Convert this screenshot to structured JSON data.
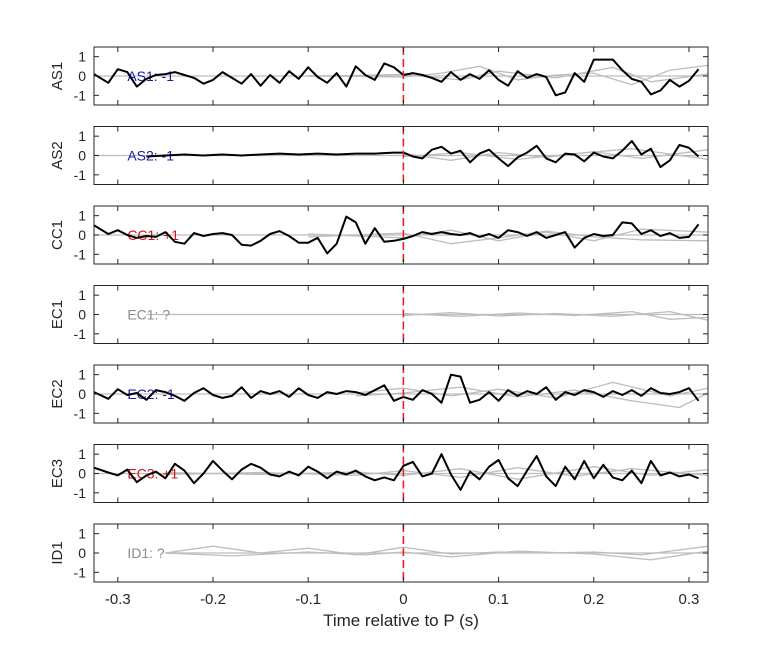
{
  "chart_data": {
    "type": "line",
    "xlabel": "Time relative to P (s)",
    "xlim": [
      -0.325,
      0.32
    ],
    "ylim": [
      -1.5,
      1.5
    ],
    "xticks": [
      -0.3,
      -0.2,
      -0.1,
      0,
      0.1,
      0.2,
      0.3
    ],
    "xtick_labels": [
      "-0.3",
      "-0.2",
      "-0.1",
      "0",
      "0.1",
      "0.2",
      "0.3"
    ],
    "yticks": [
      -1,
      0,
      1
    ],
    "ytick_labels": [
      "-1",
      "0",
      "1"
    ],
    "event_marker": {
      "x": 0,
      "style": "dashed",
      "color": "#e8231f"
    },
    "colors": {
      "negative": "#1c1ca8",
      "positive": "#d01717",
      "unknown": "#8c8c8c",
      "trace": "#000000",
      "background": "#bdbdbd"
    },
    "panels": [
      {
        "ylabel": "AS1",
        "annotation": "AS1: -1",
        "annotation_color": "#1c1ca8",
        "x": [
          -0.325,
          -0.31,
          -0.3,
          -0.29,
          -0.28,
          -0.27,
          -0.26,
          -0.25,
          -0.24,
          -0.23,
          -0.22,
          -0.21,
          -0.2,
          -0.19,
          -0.18,
          -0.17,
          -0.16,
          -0.15,
          -0.14,
          -0.13,
          -0.12,
          -0.11,
          -0.1,
          -0.09,
          -0.08,
          -0.07,
          -0.06,
          -0.05,
          -0.04,
          -0.03,
          -0.02,
          -0.01,
          0,
          0.01,
          0.02,
          0.03,
          0.04,
          0.05,
          0.06,
          0.07,
          0.08,
          0.09,
          0.1,
          0.11,
          0.12,
          0.13,
          0.14,
          0.15,
          0.16,
          0.17,
          0.18,
          0.19,
          0.2,
          0.21,
          0.22,
          0.23,
          0.24,
          0.25,
          0.26,
          0.27,
          0.28,
          0.29,
          0.3,
          0.31
        ],
        "y": [
          0.1,
          -0.35,
          0.35,
          0.2,
          -0.55,
          -0.15,
          0.05,
          0.1,
          0.2,
          0.05,
          -0.1,
          -0.4,
          -0.2,
          0.2,
          -0.1,
          -0.4,
          0.1,
          -0.5,
          0.05,
          -0.35,
          0.25,
          -0.15,
          0.45,
          -0.05,
          -0.35,
          0.15,
          -0.55,
          0.5,
          0.05,
          -0.2,
          0.65,
          0.45,
          0.05,
          0.15,
          0.05,
          -0.1,
          -0.3,
          0.2,
          -0.2,
          0.1,
          -0.15,
          0.3,
          -0.2,
          -0.5,
          0.25,
          -0.1,
          0.1,
          -0.05,
          -1.0,
          -0.85,
          0.15,
          -0.3,
          0.85,
          0.85,
          0.85,
          0.3,
          -0.15,
          -0.3,
          -0.95,
          -0.75,
          -0.2,
          -0.55,
          -0.25,
          0.35
        ],
        "background": [
          {
            "x": [
              -0.325,
              0.32
            ],
            "y": [
              0.0,
              0.0
            ]
          },
          {
            "x": [
              -0.1,
              0.0,
              0.04,
              0.08,
              0.12,
              0.16,
              0.2,
              0.24,
              0.28,
              0.32
            ],
            "y": [
              0.02,
              -0.05,
              0.15,
              0.5,
              -0.2,
              0.05,
              0.15,
              -0.45,
              0.3,
              0.55
            ]
          },
          {
            "x": [
              -0.1,
              0.0,
              0.06,
              0.1,
              0.16,
              0.22,
              0.26,
              0.32
            ],
            "y": [
              -0.02,
              0.08,
              -0.2,
              0.25,
              -0.1,
              0.45,
              -0.3,
              0.1
            ]
          }
        ]
      },
      {
        "ylabel": "AS2",
        "annotation": "AS2: -1",
        "annotation_color": "#1c1ca8",
        "x": [
          -0.27,
          -0.25,
          -0.23,
          -0.21,
          -0.19,
          -0.17,
          -0.15,
          -0.13,
          -0.11,
          -0.09,
          -0.07,
          -0.05,
          -0.03,
          -0.01,
          0,
          0.01,
          0.02,
          0.03,
          0.04,
          0.05,
          0.06,
          0.07,
          0.08,
          0.09,
          0.1,
          0.11,
          0.12,
          0.13,
          0.14,
          0.15,
          0.16,
          0.17,
          0.18,
          0.19,
          0.2,
          0.21,
          0.22,
          0.23,
          0.24,
          0.25,
          0.26,
          0.27,
          0.28,
          0.29,
          0.3,
          0.31
        ],
        "y": [
          -0.05,
          0.0,
          0.05,
          0.0,
          0.05,
          0.0,
          0.05,
          0.1,
          0.05,
          0.1,
          0.05,
          0.1,
          0.1,
          0.15,
          0.15,
          -0.05,
          -0.15,
          0.3,
          0.45,
          0.1,
          0.25,
          -0.35,
          0.1,
          0.3,
          -0.15,
          -0.55,
          -0.1,
          0.15,
          0.5,
          -0.15,
          -0.35,
          0.1,
          0.05,
          -0.3,
          0.15,
          -0.05,
          -0.15,
          0.25,
          0.75,
          0.05,
          0.35,
          -0.6,
          -0.25,
          0.55,
          0.4,
          -0.05
        ],
        "background": [
          {
            "x": [
              -0.325,
              0.32
            ],
            "y": [
              0.0,
              0.0
            ]
          },
          {
            "x": [
              0.0,
              0.05,
              0.1,
              0.15,
              0.2,
              0.25,
              0.32
            ],
            "y": [
              0.1,
              -0.25,
              0.15,
              -0.1,
              0.2,
              -0.15,
              0.3
            ]
          },
          {
            "x": [
              0.0,
              0.06,
              0.12,
              0.18,
              0.24,
              0.32
            ],
            "y": [
              -0.05,
              0.15,
              -0.2,
              0.1,
              0.35,
              -0.2
            ]
          }
        ]
      },
      {
        "ylabel": "CC1",
        "annotation": "CC1: +1",
        "annotation_color": "#d01717",
        "x": [
          -0.325,
          -0.31,
          -0.3,
          -0.29,
          -0.28,
          -0.27,
          -0.26,
          -0.25,
          -0.24,
          -0.23,
          -0.22,
          -0.21,
          -0.2,
          -0.19,
          -0.18,
          -0.17,
          -0.16,
          -0.15,
          -0.14,
          -0.13,
          -0.12,
          -0.11,
          -0.1,
          -0.09,
          -0.08,
          -0.07,
          -0.06,
          -0.05,
          -0.04,
          -0.03,
          -0.02,
          -0.01,
          0,
          0.01,
          0.02,
          0.03,
          0.04,
          0.05,
          0.06,
          0.07,
          0.08,
          0.09,
          0.1,
          0.11,
          0.12,
          0.13,
          0.14,
          0.15,
          0.16,
          0.17,
          0.18,
          0.19,
          0.2,
          0.21,
          0.22,
          0.23,
          0.24,
          0.25,
          0.26,
          0.27,
          0.28,
          0.29,
          0.3,
          0.31
        ],
        "y": [
          0.5,
          0.05,
          0.25,
          0.0,
          -0.15,
          -0.05,
          -0.1,
          0.15,
          -0.35,
          -0.45,
          0.1,
          -0.05,
          0.05,
          0.1,
          0.0,
          -0.5,
          -0.55,
          -0.3,
          0.05,
          0.2,
          -0.05,
          -0.4,
          -0.4,
          -0.15,
          -0.95,
          -0.45,
          0.95,
          0.65,
          -0.45,
          0.35,
          -0.35,
          -0.3,
          -0.2,
          -0.05,
          0.15,
          0.05,
          0.15,
          0.05,
          0.0,
          0.1,
          -0.1,
          0.05,
          -0.15,
          0.25,
          0.15,
          -0.05,
          0.15,
          -0.15,
          0.0,
          0.15,
          -0.65,
          -0.15,
          0.05,
          -0.05,
          0.0,
          0.65,
          0.6,
          0.05,
          0.25,
          -0.05,
          0.1,
          -0.15,
          -0.1,
          0.55
        ],
        "background": [
          {
            "x": [
              -0.325,
              0.32
            ],
            "y": [
              0.0,
              0.0
            ]
          },
          {
            "x": [
              -0.1,
              0.0,
              0.05,
              0.1,
              0.15,
              0.2,
              0.25,
              0.32
            ],
            "y": [
              -0.1,
              0.1,
              -0.45,
              -0.15,
              0.2,
              -0.1,
              -0.25,
              -0.3
            ]
          },
          {
            "x": [
              -0.1,
              0.0,
              0.05,
              0.1,
              0.15,
              0.2,
              0.25,
              0.32
            ],
            "y": [
              0.05,
              -0.15,
              0.25,
              -0.3,
              0.15,
              -0.3,
              0.3,
              0.15
            ]
          }
        ]
      },
      {
        "ylabel": "EC1",
        "annotation": "EC1: ?",
        "annotation_color": "#8c8c8c",
        "x": [],
        "y": [],
        "background": [
          {
            "x": [
              -0.27,
              0.32
            ],
            "y": [
              0.0,
              0.0
            ]
          },
          {
            "x": [
              0.0,
              0.06,
              0.12,
              0.18,
              0.24,
              0.28,
              0.32
            ],
            "y": [
              0.05,
              -0.1,
              0.08,
              -0.05,
              0.15,
              -0.25,
              -0.15
            ]
          },
          {
            "x": [
              0.0,
              0.05,
              0.1,
              0.16,
              0.22,
              0.28,
              0.32
            ],
            "y": [
              -0.05,
              0.1,
              -0.08,
              0.05,
              -0.1,
              0.15,
              -0.3
            ]
          }
        ]
      },
      {
        "ylabel": "EC2",
        "annotation": "EC2: -1",
        "annotation_color": "#1c1ca8",
        "x": [
          -0.325,
          -0.31,
          -0.3,
          -0.29,
          -0.28,
          -0.27,
          -0.26,
          -0.25,
          -0.24,
          -0.23,
          -0.22,
          -0.21,
          -0.2,
          -0.19,
          -0.18,
          -0.17,
          -0.16,
          -0.15,
          -0.14,
          -0.13,
          -0.12,
          -0.11,
          -0.1,
          -0.09,
          -0.08,
          -0.07,
          -0.06,
          -0.05,
          -0.04,
          -0.03,
          -0.02,
          -0.01,
          0,
          0.01,
          0.02,
          0.03,
          0.04,
          0.05,
          0.06,
          0.07,
          0.08,
          0.09,
          0.1,
          0.11,
          0.12,
          0.13,
          0.14,
          0.15,
          0.16,
          0.17,
          0.18,
          0.19,
          0.2,
          0.21,
          0.22,
          0.23,
          0.24,
          0.25,
          0.26,
          0.27,
          0.28,
          0.29,
          0.3,
          0.31
        ],
        "y": [
          0.1,
          -0.25,
          0.25,
          -0.05,
          0.05,
          -0.3,
          0.2,
          0.1,
          -0.1,
          -0.35,
          0.05,
          0.3,
          -0.05,
          -0.2,
          -0.1,
          0.35,
          -0.2,
          0.15,
          0.0,
          0.15,
          -0.15,
          0.3,
          -0.05,
          -0.2,
          0.1,
          0.0,
          0.15,
          0.1,
          -0.05,
          0.2,
          0.45,
          -0.35,
          -0.15,
          -0.3,
          0.2,
          0.0,
          -0.45,
          1.0,
          0.9,
          -0.45,
          -0.3,
          0.1,
          -0.35,
          0.2,
          -0.1,
          0.15,
          0.0,
          0.35,
          -0.3,
          0.1,
          -0.05,
          0.2,
          0.1,
          -0.15,
          0.15,
          -0.05,
          0.2,
          -0.1,
          0.3,
          0.05,
          0.0,
          0.1,
          0.3,
          -0.35
        ],
        "background": [
          {
            "x": [
              -0.325,
              0.32
            ],
            "y": [
              0.0,
              0.0
            ]
          },
          {
            "x": [
              -0.05,
              0.0,
              0.05,
              0.1,
              0.16,
              0.22,
              0.28,
              0.32
            ],
            "y": [
              0.05,
              0.3,
              -0.1,
              0.25,
              -0.2,
              0.6,
              -0.1,
              0.3
            ]
          },
          {
            "x": [
              -0.05,
              0.0,
              0.06,
              0.12,
              0.18,
              0.24,
              0.29,
              0.32
            ],
            "y": [
              -0.1,
              0.05,
              0.35,
              -0.15,
              0.2,
              -0.35,
              -0.7,
              0.05
            ]
          }
        ]
      },
      {
        "ylabel": "EC3",
        "annotation": "EC3: +1",
        "annotation_color": "#d01717",
        "x": [
          -0.325,
          -0.31,
          -0.3,
          -0.29,
          -0.28,
          -0.27,
          -0.26,
          -0.25,
          -0.24,
          -0.23,
          -0.22,
          -0.21,
          -0.2,
          -0.19,
          -0.18,
          -0.17,
          -0.16,
          -0.15,
          -0.14,
          -0.13,
          -0.12,
          -0.11,
          -0.1,
          -0.09,
          -0.08,
          -0.07,
          -0.06,
          -0.05,
          -0.04,
          -0.03,
          -0.02,
          -0.01,
          0,
          0.01,
          0.02,
          0.03,
          0.04,
          0.05,
          0.06,
          0.07,
          0.08,
          0.09,
          0.1,
          0.11,
          0.12,
          0.13,
          0.14,
          0.15,
          0.16,
          0.17,
          0.18,
          0.19,
          0.2,
          0.21,
          0.22,
          0.23,
          0.24,
          0.25,
          0.26,
          0.27,
          0.28,
          0.29,
          0.3,
          0.31
        ],
        "y": [
          0.3,
          0.05,
          -0.1,
          0.2,
          -0.45,
          -0.1,
          0.1,
          -0.25,
          0.5,
          0.15,
          -0.5,
          0.0,
          0.65,
          0.15,
          -0.3,
          0.2,
          0.5,
          0.3,
          -0.05,
          -0.15,
          0.1,
          -0.1,
          0.35,
          0.1,
          -0.25,
          0.1,
          -0.05,
          0.15,
          -0.15,
          -0.35,
          -0.2,
          -0.35,
          0.4,
          0.6,
          -0.15,
          0.0,
          1.0,
          -0.05,
          -0.85,
          0.1,
          -0.3,
          0.35,
          0.7,
          -0.25,
          -0.65,
          0.15,
          0.9,
          -0.15,
          -0.65,
          0.35,
          -0.3,
          0.65,
          -0.25,
          0.45,
          -0.2,
          -0.35,
          0.15,
          -0.5,
          0.65,
          -0.1,
          0.05,
          -0.15,
          -0.05,
          -0.25
        ],
        "background": [
          {
            "x": [
              -0.325,
              0.32
            ],
            "y": [
              0.0,
              0.0
            ]
          },
          {
            "x": [
              -0.25,
              -0.15,
              -0.05,
              0.0,
              0.06,
              0.12,
              0.18,
              0.24,
              0.32
            ],
            "y": [
              -0.05,
              0.05,
              -0.1,
              0.15,
              -0.2,
              0.3,
              -0.15,
              0.25,
              -0.1
            ]
          },
          {
            "x": [
              -0.25,
              -0.15,
              -0.05,
              0.0,
              0.06,
              0.12,
              0.2,
              0.26,
              0.32
            ],
            "y": [
              0.05,
              -0.05,
              0.08,
              -0.1,
              0.25,
              -0.3,
              0.35,
              -0.1,
              0.2
            ]
          }
        ]
      },
      {
        "ylabel": "ID1",
        "annotation": "ID1: ?",
        "annotation_color": "#8c8c8c",
        "x": [],
        "y": [],
        "background": [
          {
            "x": [
              -0.25,
              0.32
            ],
            "y": [
              0.0,
              0.0
            ]
          },
          {
            "x": [
              -0.25,
              -0.2,
              -0.15,
              -0.1,
              -0.05,
              0.0,
              0.05,
              0.1,
              0.15,
              0.2,
              0.25,
              0.32
            ],
            "y": [
              0.0,
              0.35,
              0.0,
              0.25,
              -0.1,
              0.3,
              -0.05,
              0.05,
              0.0,
              0.05,
              -0.1,
              0.35
            ]
          },
          {
            "x": [
              -0.25,
              -0.18,
              -0.1,
              -0.04,
              0.0,
              0.05,
              0.12,
              0.2,
              0.26,
              0.32
            ],
            "y": [
              0.0,
              -0.15,
              0.05,
              -0.1,
              0.05,
              -0.2,
              0.1,
              -0.05,
              -0.35,
              0.1
            ]
          }
        ]
      }
    ]
  }
}
